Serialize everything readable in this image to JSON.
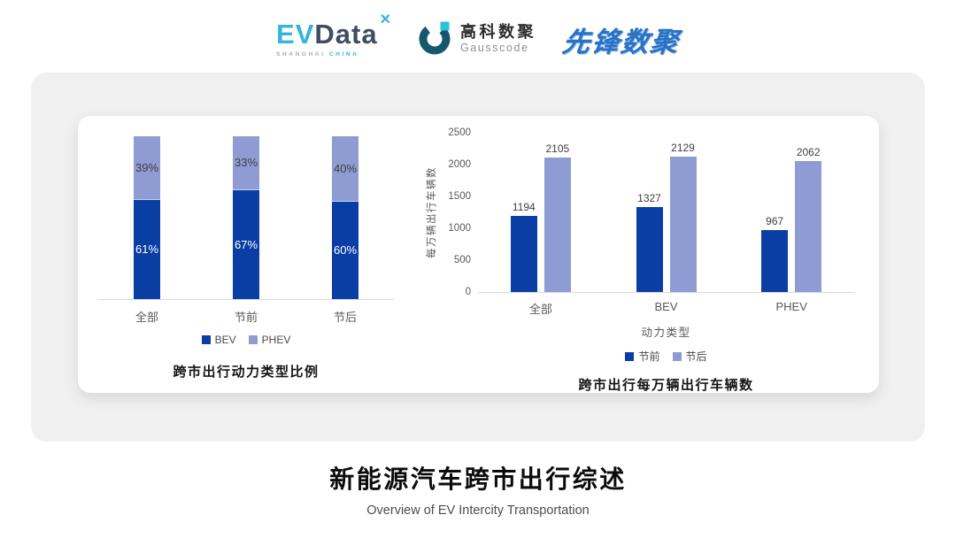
{
  "header": {
    "evdata": {
      "ev": "EV",
      "data": "Data",
      "sparkle": "✕",
      "sub_left": "SHANGHAI",
      "sub_right": "CHINA"
    },
    "gausscode": {
      "cn": "高科数聚",
      "en": "Gausscode"
    },
    "pioneer": {
      "text": "先锋数聚"
    }
  },
  "colors": {
    "dark_blue": "#0b3ea5",
    "light_blue": "#8f9cd4",
    "evdata_blue": "#35b4dd",
    "evdata_slate": "#3e4d61",
    "gausscode_teal": "#17576d",
    "gausscode_cyan": "#2bc3da",
    "pioneer_blue": "#2a72c6",
    "card_gray": "#f0f0f1"
  },
  "chart_data": [
    {
      "type": "bar",
      "variant": "stacked-percent",
      "title": "跨市出行动力类型比例",
      "categories": [
        "全部",
        "节前",
        "节后"
      ],
      "series": [
        {
          "name": "BEV",
          "color": "#0b3ea5",
          "values": [
            61,
            67,
            60
          ]
        },
        {
          "name": "PHEV",
          "color": "#8f9cd4",
          "values": [
            39,
            33,
            40
          ]
        }
      ],
      "value_suffix": "%",
      "ylim": [
        0,
        100
      ],
      "grid": false,
      "legend_position": "bottom"
    },
    {
      "type": "bar",
      "variant": "grouped",
      "title": "跨市出行每万辆出行车辆数",
      "categories": [
        "全部",
        "BEV",
        "PHEV"
      ],
      "xlabel": "动力类型",
      "ylabel": "每万辆出行车辆数",
      "series": [
        {
          "name": "节前",
          "color": "#0b3ea5",
          "values": [
            1194,
            1327,
            967
          ]
        },
        {
          "name": "节后",
          "color": "#8f9cd4",
          "values": [
            2105,
            2129,
            2062
          ]
        }
      ],
      "ylim": [
        0,
        2500
      ],
      "yticks": [
        0,
        500,
        1000,
        1500,
        2000,
        2500
      ],
      "grid": false,
      "legend_position": "bottom"
    }
  ],
  "footer": {
    "title": "新能源汽车跨市出行综述",
    "subtitle": "Overview of EV Intercity Transportation"
  }
}
